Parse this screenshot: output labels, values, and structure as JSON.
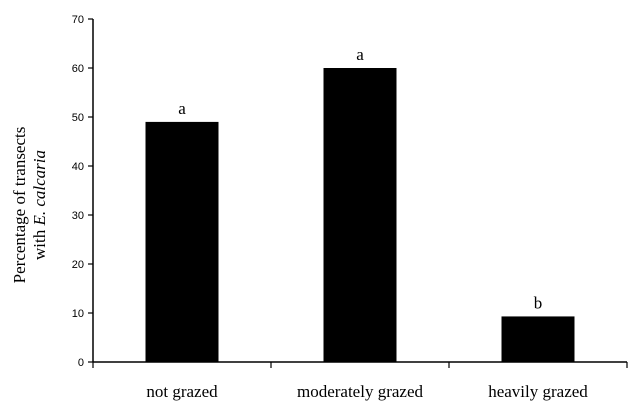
{
  "chart_data": {
    "type": "bar",
    "categories": [
      "not grazed",
      "moderately grazed",
      "heavily grazed"
    ],
    "values": [
      49,
      60,
      9.3
    ],
    "bar_labels": [
      "a",
      "a",
      "b"
    ],
    "ylabel_line1": "Percentage of transects",
    "ylabel_line2_prefix": "with ",
    "ylabel_line2_italic": "E. calcaria",
    "xlabel": "",
    "ylim": [
      0,
      70
    ],
    "yticks": [
      0,
      10,
      20,
      30,
      40,
      50,
      60,
      70
    ],
    "grid": false,
    "bar_color": "#000000"
  }
}
